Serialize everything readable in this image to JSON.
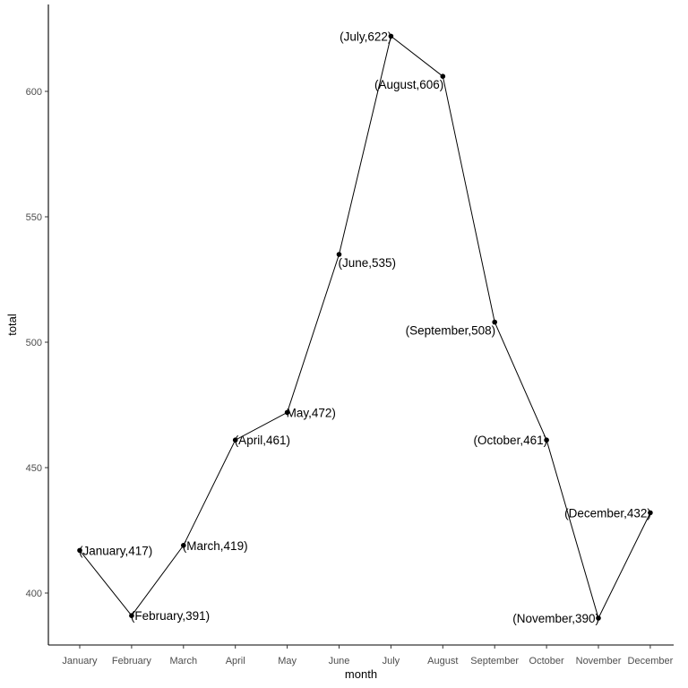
{
  "chart_data": {
    "type": "line",
    "title": "",
    "xlabel": "month",
    "ylabel": "total",
    "categories": [
      "January",
      "February",
      "March",
      "April",
      "May",
      "June",
      "July",
      "August",
      "September",
      "October",
      "November",
      "December"
    ],
    "values": [
      417,
      391,
      419,
      461,
      472,
      535,
      622,
      606,
      508,
      461,
      390,
      432
    ],
    "point_labels": [
      "(January,417)",
      "(February,391)",
      "(March,419)",
      "(April,461)",
      "May,472)",
      "(June,535)",
      "(July,622)",
      "(August,606)",
      "(September,508)",
      "(October,461)",
      "(November,390)",
      "(December,432)"
    ],
    "yticks": [
      400,
      450,
      500,
      550,
      600
    ],
    "ylim": [
      382,
      630
    ],
    "grid": false,
    "line_color": "#000000",
    "point_color": "#000000"
  }
}
